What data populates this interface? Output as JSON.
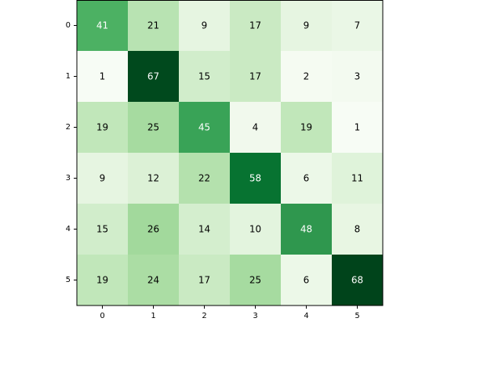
{
  "chart_data": {
    "type": "heatmap",
    "colormap": "Greens",
    "x_tick_labels": [
      "0",
      "1",
      "2",
      "3",
      "4",
      "5"
    ],
    "y_tick_labels": [
      "0",
      "1",
      "2",
      "3",
      "4",
      "5"
    ],
    "value_range": [
      1,
      68
    ],
    "values": [
      [
        41,
        21,
        9,
        17,
        9,
        7
      ],
      [
        1,
        67,
        15,
        17,
        2,
        3
      ],
      [
        19,
        25,
        45,
        4,
        19,
        1
      ],
      [
        9,
        12,
        22,
        58,
        6,
        11
      ],
      [
        15,
        26,
        14,
        10,
        48,
        8
      ],
      [
        19,
        24,
        17,
        25,
        6,
        68
      ]
    ],
    "grid": false,
    "colorbar": false,
    "title": "",
    "xlabel": "",
    "ylabel": ""
  }
}
